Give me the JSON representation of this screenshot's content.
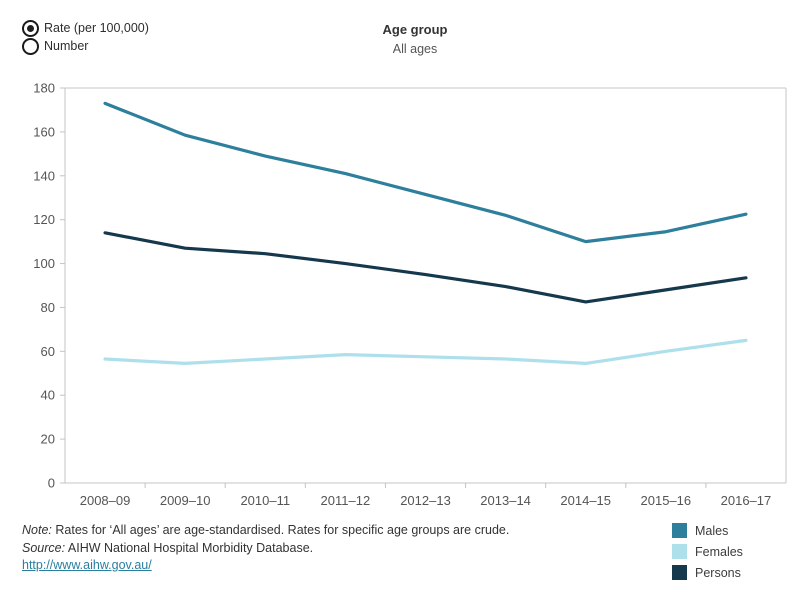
{
  "controls": {
    "radios": [
      {
        "label": "Rate (per 100,000)",
        "selected": true
      },
      {
        "label": "Number",
        "selected": false
      }
    ]
  },
  "header": {
    "title": "Age group",
    "subtitle": "All ages"
  },
  "chart_data": {
    "type": "line",
    "categories": [
      "2008–09",
      "2009–10",
      "2010–11",
      "2011–12",
      "2012–13",
      "2013–14",
      "2014–15",
      "2015–16",
      "2016–17"
    ],
    "series": [
      {
        "name": "Males",
        "color": "#2e7f9b",
        "values": [
          173,
          158.5,
          149,
          141,
          131.5,
          122,
          110,
          114.5,
          122.5
        ]
      },
      {
        "name": "Females",
        "color": "#aee0ec",
        "values": [
          56.5,
          54.5,
          56.5,
          58.5,
          57.5,
          56.5,
          54.5,
          60,
          65
        ]
      },
      {
        "name": "Persons",
        "color": "#15384c",
        "values": [
          114,
          107,
          104.5,
          100,
          95,
          89.5,
          82.5,
          88,
          93.5
        ]
      }
    ],
    "title": "",
    "xlabel": "",
    "ylabel": "",
    "ylim": [
      0,
      180
    ],
    "ytick_step": 20,
    "grid": false,
    "legend_position": "bottom-right",
    "axis_color": "#c4c4c4",
    "border_color": "#d9d9d9",
    "tick_label_color": "#555555"
  },
  "footer": {
    "note_label": "Note:",
    "note_text": "Rates  for ‘All ages’ are age-standardised. Rates for specific age groups are crude.",
    "source_label": "Source:",
    "source_text": "AIHW National Hospital Morbidity Database.",
    "link": "http://www.aihw.gov.au/"
  }
}
